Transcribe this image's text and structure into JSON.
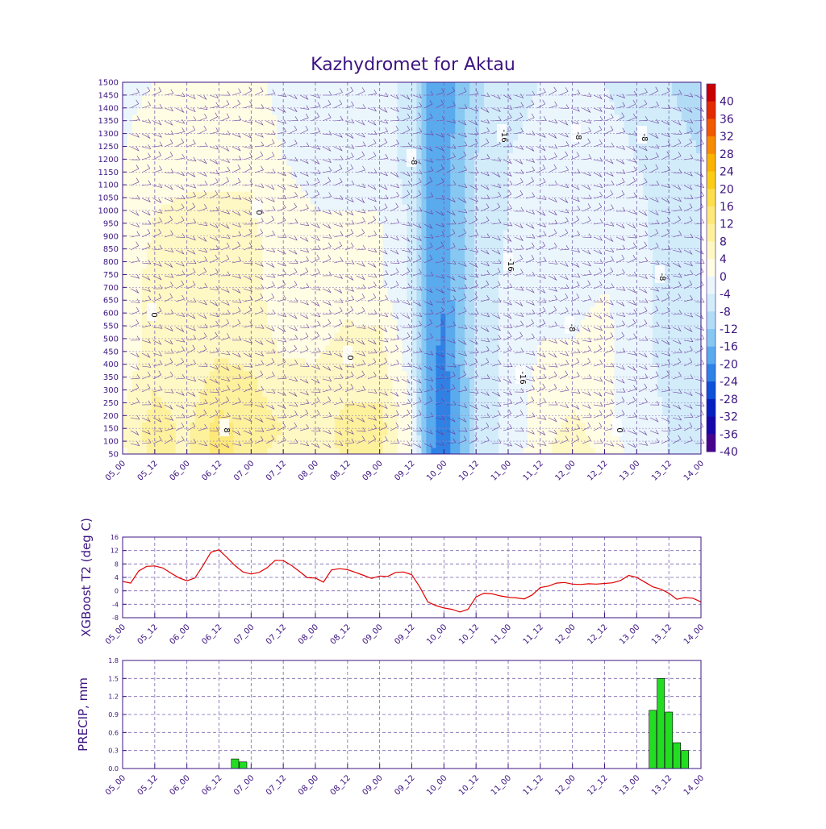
{
  "title": "Kazhydromet for Aktau",
  "chart_data": [
    {
      "type": "heatmap",
      "x_tick_labels": [
        "05_00",
        "05_12",
        "06_00",
        "06_12",
        "07_00",
        "07_12",
        "08_00",
        "08_12",
        "09_00",
        "09_12",
        "10_00",
        "10_12",
        "11_00",
        "11_12",
        "12_00",
        "12_12",
        "13_00",
        "13_12",
        "14_00"
      ],
      "x_range_hours": [
        0,
        216
      ],
      "y_range": [
        50,
        1500
      ],
      "y_ticks": [
        50,
        100,
        150,
        200,
        250,
        300,
        350,
        400,
        450,
        500,
        550,
        600,
        650,
        700,
        750,
        800,
        850,
        900,
        950,
        1000,
        1050,
        1100,
        1150,
        1200,
        1250,
        1300,
        1350,
        1400,
        1450,
        1500
      ],
      "colorbar": {
        "labels": [
          "40",
          "36",
          "32",
          "28",
          "24",
          "20",
          "16",
          "12",
          "8",
          "4",
          "0",
          "-4",
          "-8",
          "-12",
          "-16",
          "-20",
          "-24",
          "-28",
          "-32",
          "-36",
          "-40"
        ],
        "colors": [
          "#c80000",
          "#e42b00",
          "#f25a00",
          "#f88c00",
          "#fab400",
          "#fbce14",
          "#fcdf4a",
          "#fde978",
          "#fdf19c",
          "#fef8c4",
          "#fffde4",
          "#eaf6fc",
          "#d2ecfa",
          "#b2dcf6",
          "#86c8f2",
          "#5aaaee",
          "#2e82e6",
          "#0f50d8",
          "#0620c0",
          "#1608a8",
          "#46048c"
        ]
      },
      "contour_labels": [
        "-16",
        "-8",
        "-8",
        "-8",
        "0",
        "0",
        "-16",
        "-8",
        "-8",
        "-16",
        "0",
        "8",
        "0"
      ],
      "temperature_grid": {
        "hours": [
          0,
          12,
          24,
          36,
          48,
          60,
          72,
          84,
          96,
          108,
          114,
          120,
          126,
          132,
          144,
          156,
          168,
          180,
          192,
          204,
          216
        ],
        "levels": [
          50,
          150,
          300,
          500,
          700,
          1000,
          1200,
          1500
        ],
        "values": [
          [
            -1,
            6,
            3,
            10,
            5,
            3,
            1,
            5,
            4,
            -3,
            -22,
            -28,
            -20,
            -12,
            -6,
            -2,
            4,
            -2,
            -5,
            -8,
            -10
          ],
          [
            1,
            6,
            3,
            10,
            6,
            4,
            2,
            6,
            6,
            -4,
            -22,
            -26,
            -20,
            -12,
            -6,
            -3,
            2,
            -3,
            -6,
            -8,
            -10
          ],
          [
            -1,
            4,
            2,
            6,
            5,
            2,
            1,
            3,
            3,
            -5,
            -22,
            -26,
            -20,
            -12,
            -6,
            -3,
            -2,
            -3,
            -6,
            -9,
            -12
          ],
          [
            -3,
            2,
            1,
            3,
            2,
            -1,
            -1,
            1,
            1,
            -7,
            -22,
            -25,
            -18,
            -11,
            -7,
            -4,
            -4,
            -3,
            -6,
            -10,
            -12
          ],
          [
            -3,
            2,
            1,
            2,
            1,
            -2,
            -3,
            -2,
            -3,
            -9,
            -22,
            -23,
            -17,
            -11,
            -7,
            -5,
            -5,
            -4,
            -6,
            -10,
            -12
          ],
          [
            -4,
            0,
            1,
            1,
            1,
            -3,
            -4,
            -4,
            -4,
            -9,
            -20,
            -22,
            -17,
            -11,
            -8,
            -6,
            -6,
            -6,
            -7,
            -10,
            -12
          ],
          [
            -4,
            -2,
            -2,
            -2,
            -2,
            -4,
            -5,
            -5,
            -6,
            -10,
            -20,
            -22,
            -18,
            -12,
            -8,
            -7,
            -7,
            -7,
            -8,
            -10,
            -12
          ],
          [
            -5,
            -4,
            -4,
            -4,
            -3,
            -5,
            -6,
            -6,
            -6,
            -10,
            -20,
            -22,
            -19,
            -13,
            -9,
            -8,
            -8,
            -8,
            -9,
            -12,
            -14
          ]
        ]
      }
    },
    {
      "type": "line",
      "ylabel": "XGBoost T2 (deg C)",
      "ylim": [
        -8,
        16
      ],
      "y_ticks": [
        -8,
        -4,
        0,
        4,
        8,
        12,
        16
      ],
      "x_tick_labels": [
        "05_00",
        "05_12",
        "06_00",
        "06_12",
        "07_00",
        "07_12",
        "08_00",
        "08_12",
        "09_00",
        "09_12",
        "10_00",
        "10_12",
        "11_00",
        "11_12",
        "12_00",
        "12_12",
        "13_00",
        "13_12",
        "14_00"
      ],
      "series": [
        {
          "color": "#e00000",
          "x": [
            0,
            3,
            6,
            9,
            12,
            15,
            18,
            21,
            24,
            27,
            30,
            33,
            36,
            39,
            42,
            45,
            48,
            51,
            54,
            57,
            60,
            63,
            66,
            69,
            72,
            75,
            78,
            81,
            84,
            87,
            90,
            93,
            96,
            99,
            102,
            105,
            108,
            111,
            114,
            117,
            120,
            123,
            126,
            129,
            132,
            135,
            138,
            141,
            144,
            147,
            150,
            153,
            156,
            159,
            162,
            165,
            168,
            171,
            174,
            177,
            180,
            183,
            186,
            189,
            192,
            195,
            198,
            201,
            204,
            207,
            210,
            213,
            216
          ],
          "y": [
            2.8,
            2.3,
            5.9,
            7.3,
            7.4,
            6.8,
            5.3,
            3.9,
            3.0,
            3.8,
            7.5,
            11.5,
            12.2,
            9.9,
            7.5,
            5.6,
            5.0,
            5.5,
            6.9,
            9.1,
            9.0,
            7.6,
            5.8,
            3.9,
            3.8,
            2.6,
            6.2,
            6.6,
            6.3,
            5.5,
            4.6,
            3.7,
            4.4,
            4.3,
            5.5,
            5.6,
            4.8,
            1.1,
            -3.3,
            -4.4,
            -5.1,
            -5.5,
            -6.3,
            -5.5,
            -1.8,
            -0.7,
            -0.9,
            -1.5,
            -1.9,
            -2.1,
            -2.4,
            -1.2,
            1.0,
            1.4,
            2.3,
            2.5,
            2.0,
            1.9,
            2.1,
            2.0,
            2.2,
            2.4,
            3.1,
            4.6,
            4.0,
            2.6,
            1.2,
            0.5,
            -0.7,
            -2.5,
            -2.0,
            -2.2,
            -3.3
          ]
        }
      ]
    },
    {
      "type": "bar",
      "ylabel": "PRECIP, mm",
      "ylim": [
        0,
        1.8
      ],
      "y_ticks": [
        "0.0",
        "0.3",
        "0.6",
        "0.9",
        "1.2",
        "1.5",
        "1.8"
      ],
      "x_tick_labels": [
        "05_00",
        "05_12",
        "06_00",
        "06_12",
        "07_00",
        "07_12",
        "08_00",
        "08_12",
        "09_00",
        "09_12",
        "10_00",
        "10_12",
        "11_00",
        "11_12",
        "12_00",
        "12_12",
        "13_00",
        "13_12",
        "14_00"
      ],
      "bar_color": "#22dd22",
      "bars": [
        {
          "x": 42,
          "value": 0.16
        },
        {
          "x": 45,
          "value": 0.11
        },
        {
          "x": 198,
          "value": 0.97
        },
        {
          "x": 201,
          "value": 1.5
        },
        {
          "x": 204,
          "value": 0.94
        },
        {
          "x": 207,
          "value": 0.43
        },
        {
          "x": 210,
          "value": 0.3
        }
      ]
    }
  ]
}
